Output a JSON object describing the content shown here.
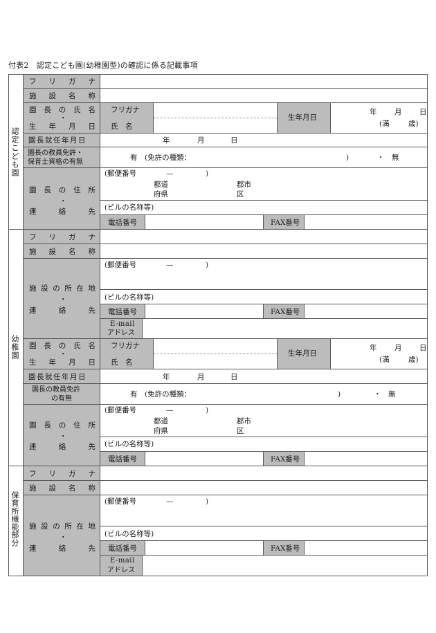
{
  "title": "付表2　認定こども園(幼稚園型)の確認に係る記載事項",
  "sections": {
    "nintei": "認定こども園",
    "yochien": "幼稚園",
    "hoiku": "保育所機能部分"
  },
  "labels": {
    "furigana_spaced": "フリガナ",
    "shisetsu_meisho": "施設名称",
    "encho_shimei": "園長の氏名",
    "dot": "・",
    "seinengappi_spaced": "生年月日",
    "encho_shunin": "園長就任年月日",
    "menkyo_line1": "園長の教員免許・",
    "menkyo_line2": "保育士資格の有無",
    "menkyo2_line1": "園長の教員免許",
    "menkyo2_line2": "の有無",
    "encho_jusho": "園長の住所",
    "renrakusaki": "連絡先",
    "shisetsu_shozaichi": "施設の所在地"
  },
  "fields": {
    "furigana": "フリガナ",
    "shimei": "氏　名",
    "seinengappi": "生年月日",
    "nen": "年",
    "tsuki": "月",
    "hi": "日",
    "man": "(満",
    "sai": "歳)",
    "ari": "有",
    "menkyo_shurui": "(免許の種類：",
    "close_paren": ")",
    "nashi": "・　無",
    "yubin": "(郵便番号",
    "dash": "—",
    "todo": "都道",
    "fuken": "府県",
    "gunshi": "郡市",
    "ku": "区",
    "building": "(ビルの名称等)",
    "tel": "電話番号",
    "fax": "FAX番号",
    "email_1": "E-mail",
    "email_2": "アドレス"
  }
}
